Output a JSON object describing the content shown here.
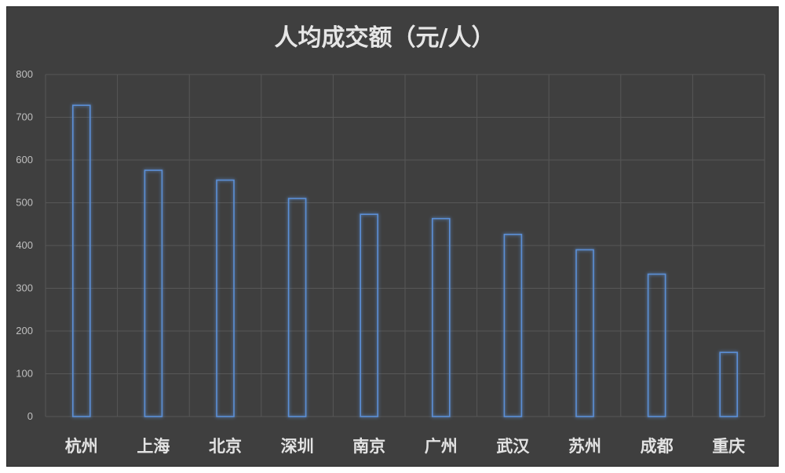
{
  "chart_data": {
    "type": "bar",
    "title": "人均成交额（元/人）",
    "xlabel": "",
    "ylabel": "",
    "categories": [
      "杭州",
      "上海",
      "北京",
      "深圳",
      "南京",
      "广州",
      "武汉",
      "苏州",
      "成都",
      "重庆"
    ],
    "values": [
      728,
      576,
      553,
      510,
      473,
      463,
      426,
      390,
      333,
      150
    ],
    "ylim": [
      0,
      800
    ],
    "yticks": [
      "0",
      "100",
      "200",
      "300",
      "400",
      "500",
      "600",
      "700",
      "800"
    ],
    "grid": true,
    "colors": {
      "background": "#3f3f3f",
      "bar_outline": "#5b8fd6",
      "bar_glow": "#3f7fd8",
      "grid": "#575757"
    }
  }
}
